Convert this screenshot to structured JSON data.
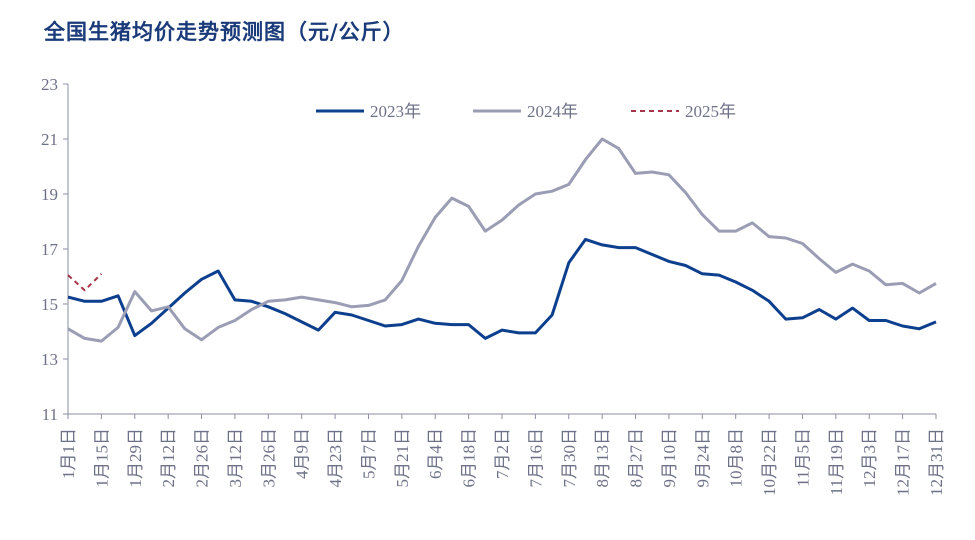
{
  "chart_data": {
    "type": "line",
    "title": "全国生猪均价走势预测图（元/公斤）",
    "ylim": [
      11,
      23
    ],
    "yticks": [
      "11",
      "13",
      "15",
      "17",
      "19",
      "21",
      "23"
    ],
    "xticks": [
      "1月1日",
      "1月15日",
      "1月29日",
      "2月12日",
      "2月26日",
      "3月12日",
      "3月26日",
      "4月9日",
      "4月23日",
      "5月7日",
      "5月21日",
      "6月4日",
      "6月18日",
      "7月2日",
      "7月16日",
      "7月30日",
      "8月13日",
      "8月27日",
      "9月10日",
      "9月24日",
      "10月8日",
      "10月22日",
      "11月5日",
      "11月19日",
      "12月3日",
      "12月17日",
      "12月31日"
    ],
    "grid": false,
    "legend_position": "top",
    "series": [
      {
        "name": "2023年",
        "color": "#0d3f8f",
        "dash": false,
        "values": [
          15.25,
          15.1,
          15.1,
          15.3,
          13.85,
          14.3,
          14.85,
          15.4,
          15.9,
          16.2,
          15.15,
          15.1,
          14.9,
          14.65,
          14.35,
          14.05,
          14.7,
          14.6,
          14.4,
          14.2,
          14.25,
          14.45,
          14.3,
          14.25,
          14.25,
          13.75,
          14.05,
          13.95,
          13.95,
          14.6,
          16.5,
          17.35,
          17.15,
          17.05,
          17.05,
          16.8,
          16.55,
          16.4,
          16.1,
          16.05,
          15.8,
          15.5,
          15.1,
          14.45,
          14.5,
          14.8,
          14.45,
          14.85,
          14.4,
          14.4,
          14.2,
          14.1,
          14.35
        ]
      },
      {
        "name": "2024年",
        "color": "#9a9db4",
        "dash": false,
        "values": [
          14.1,
          13.75,
          13.65,
          14.15,
          15.45,
          14.75,
          14.9,
          14.1,
          13.7,
          14.15,
          14.4,
          14.8,
          15.1,
          15.15,
          15.25,
          15.15,
          15.05,
          14.9,
          14.95,
          15.15,
          15.85,
          17.1,
          18.15,
          18.85,
          18.55,
          17.65,
          18.05,
          18.6,
          19.0,
          19.1,
          19.35,
          20.25,
          21.0,
          20.65,
          19.75,
          19.8,
          19.7,
          19.05,
          18.25,
          17.65,
          17.65,
          17.95,
          17.45,
          17.4,
          17.2,
          16.65,
          16.15,
          16.45,
          16.2,
          15.7,
          15.75,
          15.4,
          15.75
        ]
      },
      {
        "name": "2025年",
        "color": "#a8344a",
        "dash": true,
        "values": [
          16.05,
          15.5,
          16.1
        ]
      }
    ]
  }
}
